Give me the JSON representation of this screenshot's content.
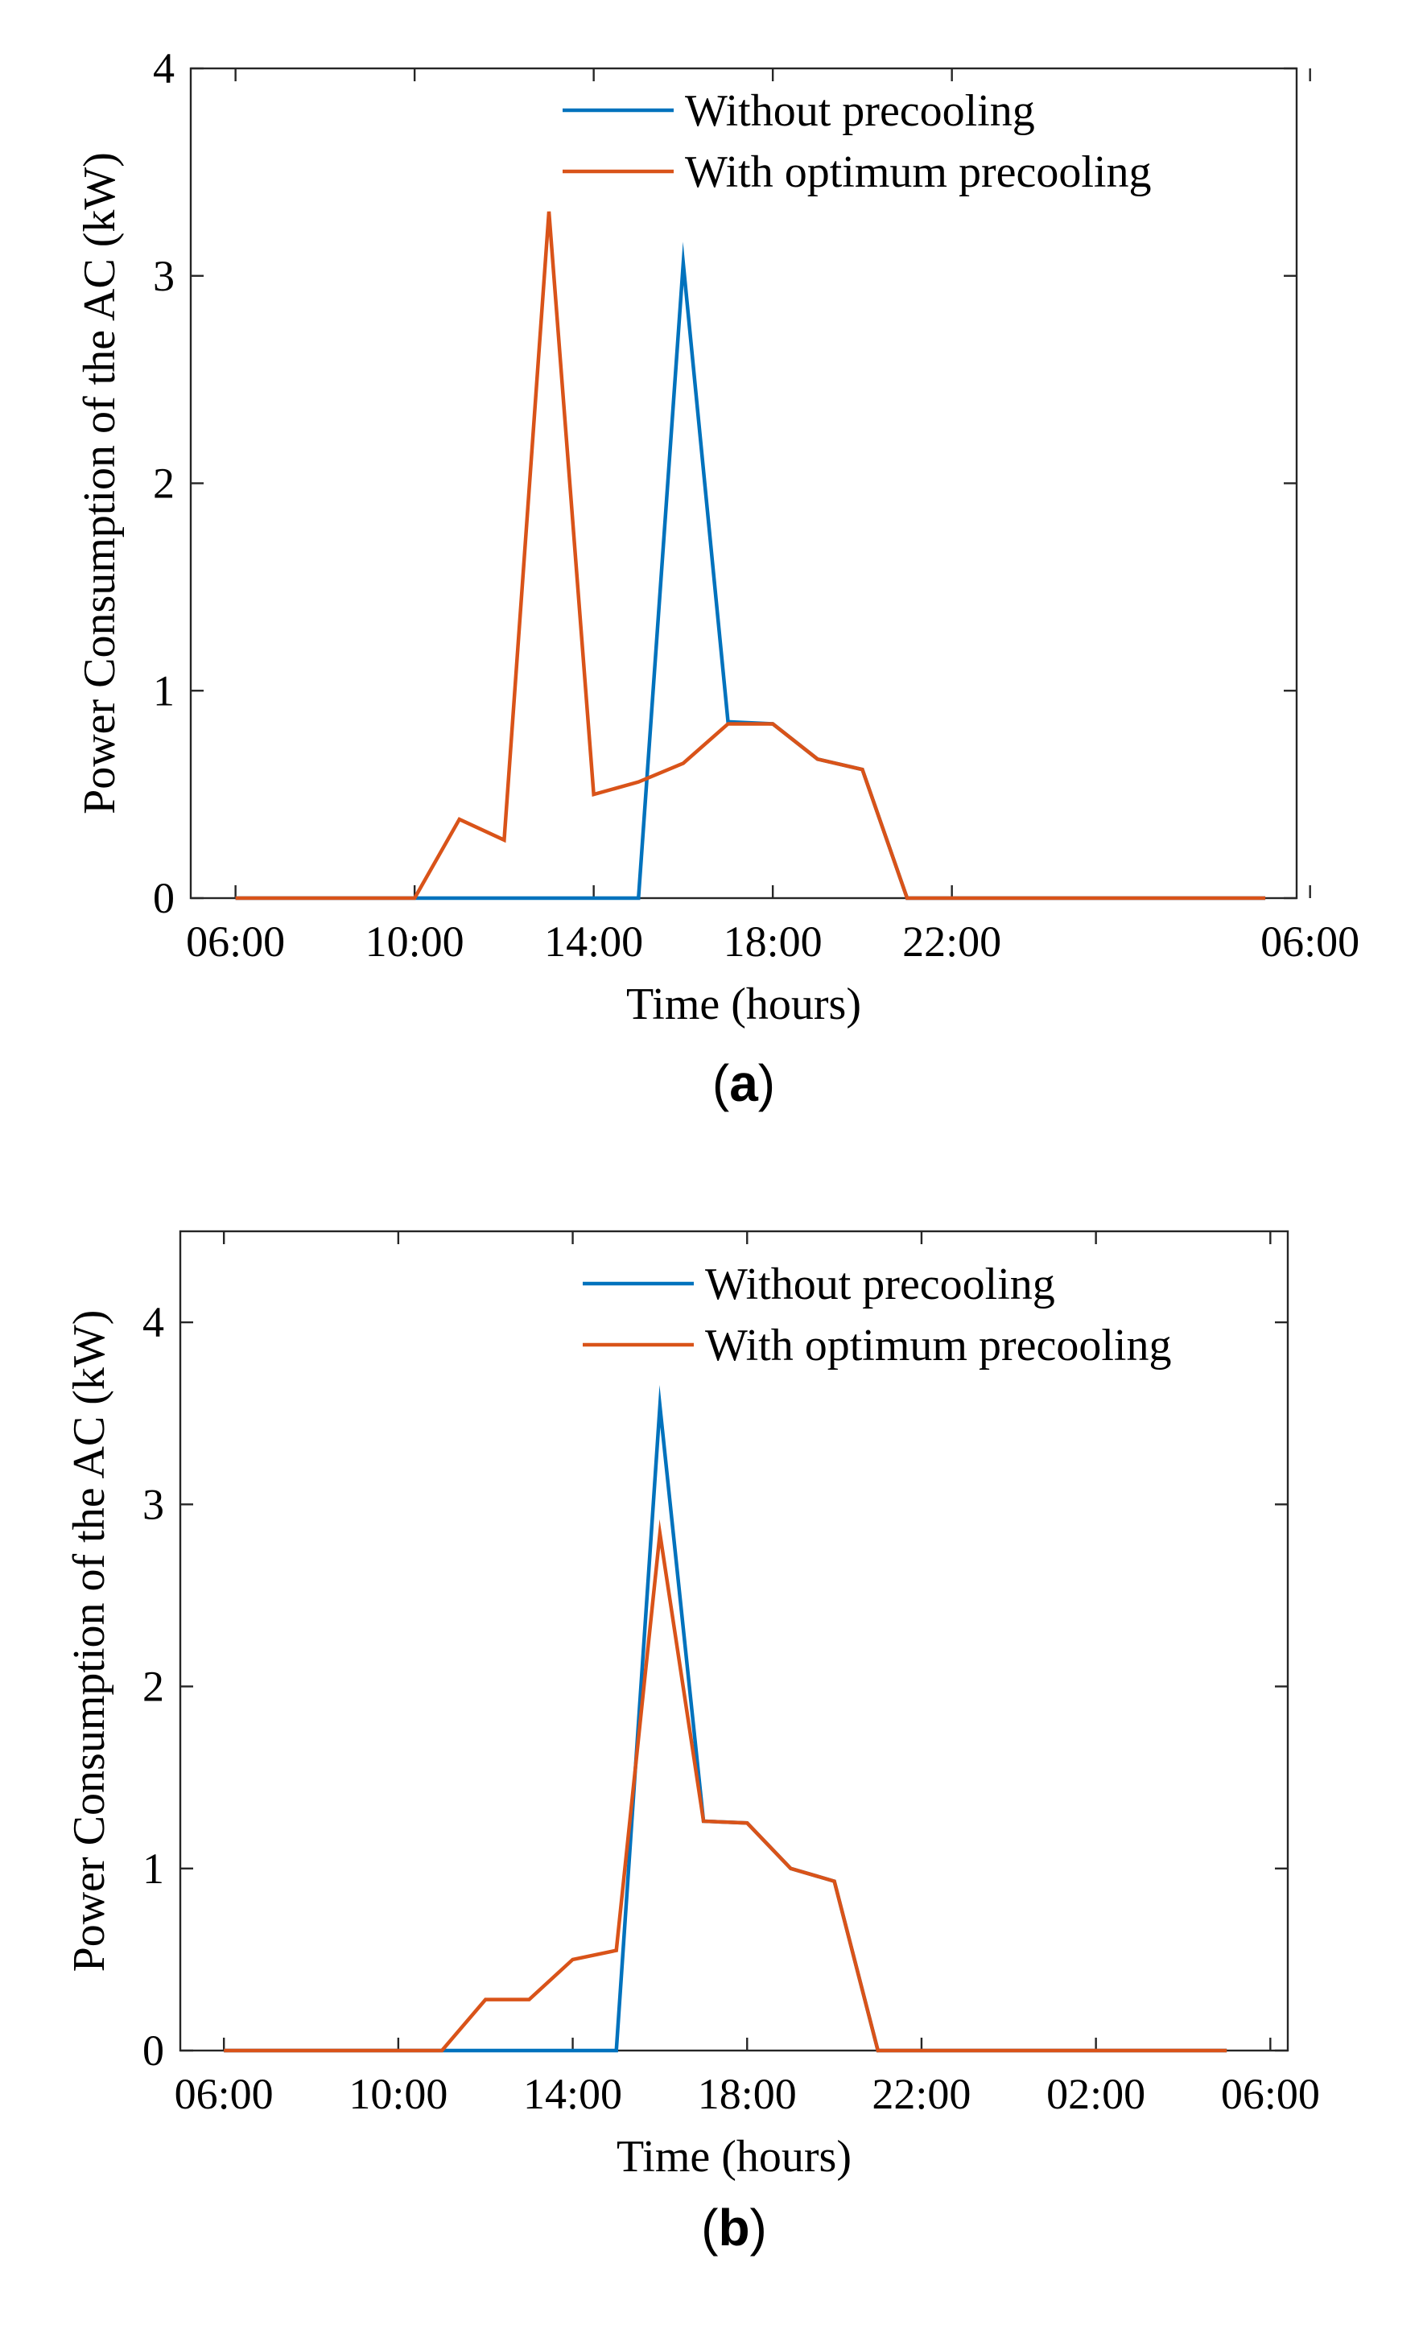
{
  "figure": {
    "panels": [
      "a",
      "b"
    ]
  },
  "chart_data": [
    {
      "type": "line",
      "panel_caption": "(a)",
      "caption_letter": "a",
      "xlabel": "Time (hours)",
      "ylabel": "Power Consumption of the AC (kW)",
      "xlim": [
        5,
        29.7
      ],
      "ylim": [
        0,
        4
      ],
      "x_ticks": [
        6,
        10,
        14,
        18,
        22,
        30
      ],
      "x_tick_labels": [
        "06:00",
        "10:00",
        "14:00",
        "18:00",
        "22:00",
        "06:00"
      ],
      "y_ticks": [
        0,
        1,
        2,
        3,
        4
      ],
      "y_tick_labels": [
        "0",
        "1",
        "2",
        "3",
        "4"
      ],
      "legend_position": "top-right",
      "series": [
        {
          "name": "Without precooling",
          "color": "#0072BD",
          "x": [
            6,
            7,
            8,
            9,
            10,
            11,
            12,
            13,
            14,
            15,
            16,
            17,
            18,
            19,
            20,
            21,
            22,
            23,
            24,
            25,
            26,
            27,
            28,
            29
          ],
          "values": [
            0,
            0,
            0,
            0,
            0,
            0,
            0,
            0,
            0,
            0,
            3.06,
            0.85,
            0.84,
            0.67,
            0.62,
            0,
            0,
            0,
            0,
            0,
            0,
            0,
            0,
            0
          ]
        },
        {
          "name": "With optimum precooling",
          "color": "#D95319",
          "x": [
            6,
            7,
            8,
            9,
            10,
            11,
            12,
            13,
            14,
            15,
            16,
            17,
            18,
            19,
            20,
            21,
            22,
            23,
            24,
            25,
            26,
            27,
            28,
            29
          ],
          "values": [
            0,
            0,
            0,
            0,
            0,
            0.38,
            0.28,
            3.31,
            0.5,
            0.56,
            0.65,
            0.84,
            0.84,
            0.67,
            0.62,
            0,
            0,
            0,
            0,
            0,
            0,
            0,
            0,
            0
          ]
        }
      ]
    },
    {
      "type": "line",
      "panel_caption": "(b)",
      "caption_letter": "b",
      "xlabel": "Time (hours)",
      "ylabel": "Power Consumption of the AC (kW)",
      "xlim": [
        5,
        30.4
      ],
      "ylim": [
        0,
        4.5
      ],
      "x_ticks": [
        6,
        10,
        14,
        18,
        22,
        26,
        30
      ],
      "x_tick_labels": [
        "06:00",
        "10:00",
        "14:00",
        "18:00",
        "22:00",
        "02:00",
        "06:00"
      ],
      "y_ticks": [
        0,
        1,
        2,
        3,
        4
      ],
      "y_tick_labels": [
        "0",
        "1",
        "2",
        "3",
        "4"
      ],
      "legend_position": "top-right",
      "series": [
        {
          "name": "Without precooling",
          "color": "#0072BD",
          "x": [
            6,
            7,
            8,
            9,
            10,
            11,
            12,
            13,
            14,
            15,
            16,
            17,
            18,
            19,
            20,
            21,
            22,
            23,
            24,
            25,
            26,
            27,
            28,
            29
          ],
          "values": [
            0,
            0,
            0,
            0,
            0,
            0,
            0,
            0,
            0,
            0,
            3.54,
            1.26,
            1.25,
            1.0,
            0.93,
            0,
            0,
            0,
            0,
            0,
            0,
            0,
            0,
            0
          ]
        },
        {
          "name": "With optimum precooling",
          "color": "#D95319",
          "x": [
            6,
            7,
            8,
            9,
            10,
            11,
            12,
            13,
            14,
            15,
            16,
            17,
            18,
            19,
            20,
            21,
            22,
            23,
            24,
            25,
            26,
            27,
            28,
            29
          ],
          "values": [
            0,
            0,
            0,
            0,
            0,
            0,
            0.28,
            0.28,
            0.5,
            0.55,
            2.84,
            1.26,
            1.25,
            1.0,
            0.93,
            0,
            0,
            0,
            0,
            0,
            0,
            0,
            0,
            0
          ]
        }
      ]
    }
  ]
}
